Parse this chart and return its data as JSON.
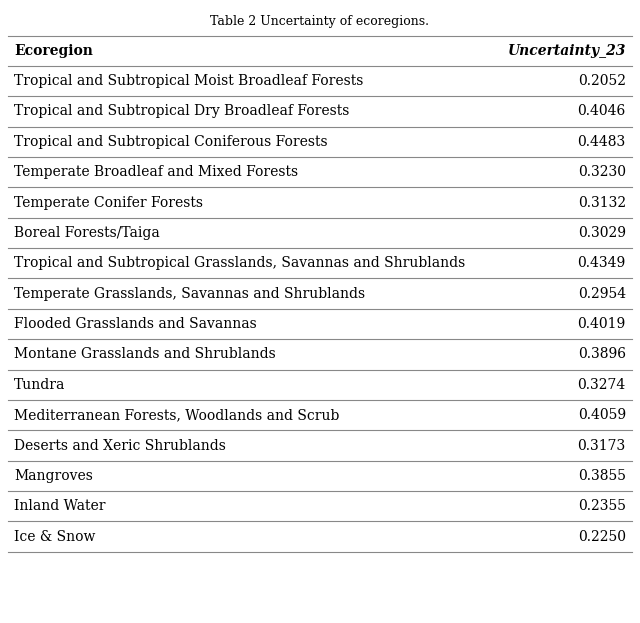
{
  "title": "Table 2 Uncertainty of ecoregions.",
  "col1_header": "Ecoregion",
  "col2_header": "Uncertainty_23",
  "rows": [
    [
      "Tropical and Subtropical Moist Broadleaf Forests",
      "0.2052"
    ],
    [
      "Tropical and Subtropical Dry Broadleaf Forests",
      "0.4046"
    ],
    [
      "Tropical and Subtropical Coniferous Forests",
      "0.4483"
    ],
    [
      "Temperate Broadleaf and Mixed Forests",
      "0.3230"
    ],
    [
      "Temperate Conifer Forests",
      "0.3132"
    ],
    [
      "Boreal Forests/Taiga",
      "0.3029"
    ],
    [
      "Tropical and Subtropical Grasslands, Savannas and Shrublands",
      "0.4349"
    ],
    [
      "Temperate Grasslands, Savannas and Shrublands",
      "0.2954"
    ],
    [
      "Flooded Grasslands and Savannas",
      "0.4019"
    ],
    [
      "Montane Grasslands and Shrublands",
      "0.3896"
    ],
    [
      "Tundra",
      "0.3274"
    ],
    [
      "Mediterranean Forests, Woodlands and Scrub",
      "0.4059"
    ],
    [
      "Deserts and Xeric Shrublands",
      "0.3173"
    ],
    [
      "Mangroves",
      "0.3855"
    ],
    [
      "Inland Water",
      "0.2355"
    ],
    [
      "Ice & Snow",
      "0.2250"
    ]
  ],
  "bg_color": "#ffffff",
  "text_color": "#000000",
  "line_color": "#888888",
  "title_fontsize": 9,
  "header_fontsize": 10,
  "row_fontsize": 10,
  "fig_width": 6.4,
  "fig_height": 6.23
}
